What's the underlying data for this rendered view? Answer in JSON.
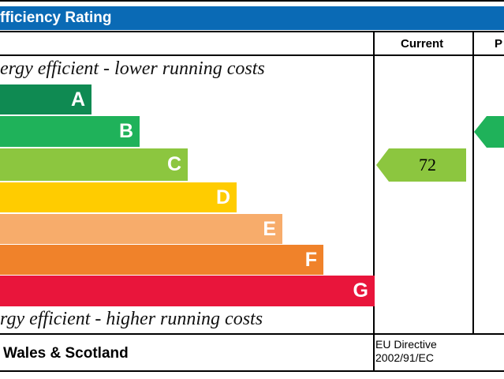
{
  "header": {
    "title": "fficiency Rating",
    "bg_color": "#0a6ab5"
  },
  "columns": {
    "current": "Current",
    "potential": "P"
  },
  "labels": {
    "top": "ergy efficient - lower running costs",
    "bottom": "rgy efficient - higher running costs"
  },
  "bands": [
    {
      "letter": "A",
      "color": "#0f8a52"
    },
    {
      "letter": "B",
      "color": "#1fb25a"
    },
    {
      "letter": "C",
      "color": "#8cc63f"
    },
    {
      "letter": "D",
      "color": "#ffcc00"
    },
    {
      "letter": "E",
      "color": "#f7ac6b"
    },
    {
      "letter": "F",
      "color": "#f0822a"
    },
    {
      "letter": "G",
      "color": "#e9153b"
    }
  ],
  "current": {
    "value": "72",
    "band": "C",
    "color": "#8cc63f"
  },
  "potential": {
    "band": "B",
    "color": "#1fb25a"
  },
  "footer": {
    "region": "Wales & Scotland",
    "directive_line1": "EU Directive",
    "directive_line2": "2002/91/EC"
  },
  "chart_data": {
    "type": "bar",
    "categories": [
      "A",
      "B",
      "C",
      "D",
      "E",
      "F",
      "G"
    ],
    "current_rating": 72,
    "current_band": "C",
    "potential_band": "B"
  }
}
